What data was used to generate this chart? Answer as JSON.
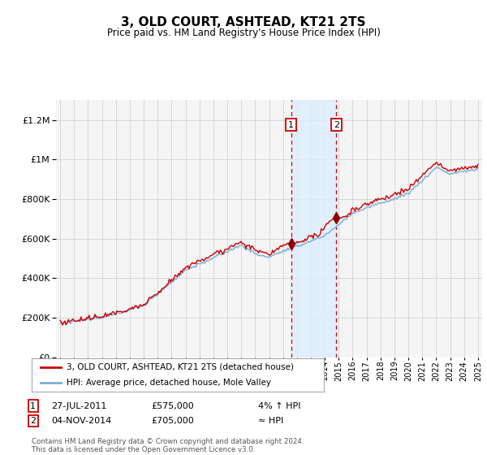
{
  "title": "3, OLD COURT, ASHTEAD, KT21 2TS",
  "subtitle": "Price paid vs. HM Land Registry's House Price Index (HPI)",
  "legend_line1": "3, OLD COURT, ASHTEAD, KT21 2TS (detached house)",
  "legend_line2": "HPI: Average price, detached house, Mole Valley",
  "footnote": "Contains HM Land Registry data © Crown copyright and database right 2024.\nThis data is licensed under the Open Government Licence v3.0.",
  "transaction1_date": "27-JUL-2011",
  "transaction1_price": "£575,000",
  "transaction1_hpi": "4% ↑ HPI",
  "transaction2_date": "04-NOV-2014",
  "transaction2_price": "£705,000",
  "transaction2_hpi": "≈ HPI",
  "hpi_color": "#7aaddc",
  "price_color": "#cc0000",
  "marker_color": "#8b0000",
  "vline_color": "#cc0000",
  "shade_color": "#ddeeff",
  "ylim_min": 0,
  "ylim_max": 1300000,
  "xmin": 1994.7,
  "xmax": 2025.3,
  "background_color": "#ffffff",
  "plot_bg_color": "#f5f5f5"
}
